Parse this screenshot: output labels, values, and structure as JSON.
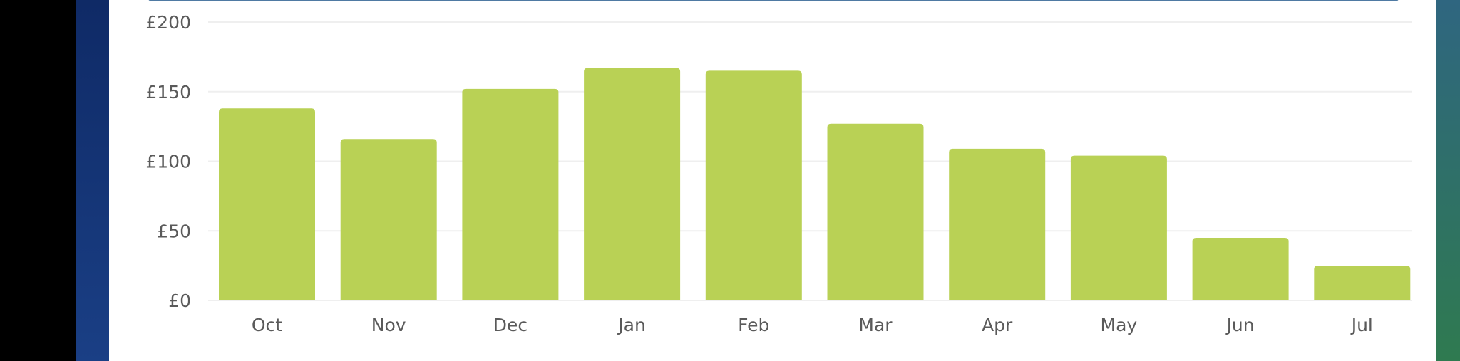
{
  "chart_data": {
    "type": "bar",
    "title": "",
    "xlabel": "",
    "ylabel": "",
    "categories": [
      "Oct",
      "Nov",
      "Dec",
      "Jan",
      "Feb",
      "Mar",
      "Apr",
      "May",
      "Jun",
      "Jul"
    ],
    "values": [
      138,
      116,
      152,
      167,
      165,
      127,
      109,
      104,
      45,
      25
    ],
    "ylim": [
      0,
      200
    ],
    "yticks": [
      0,
      50,
      100,
      150,
      200
    ],
    "ytick_labels": [
      "£0",
      "£50",
      "£100",
      "£150",
      "£200"
    ],
    "grid": true,
    "bar_color": "#b9d155"
  }
}
